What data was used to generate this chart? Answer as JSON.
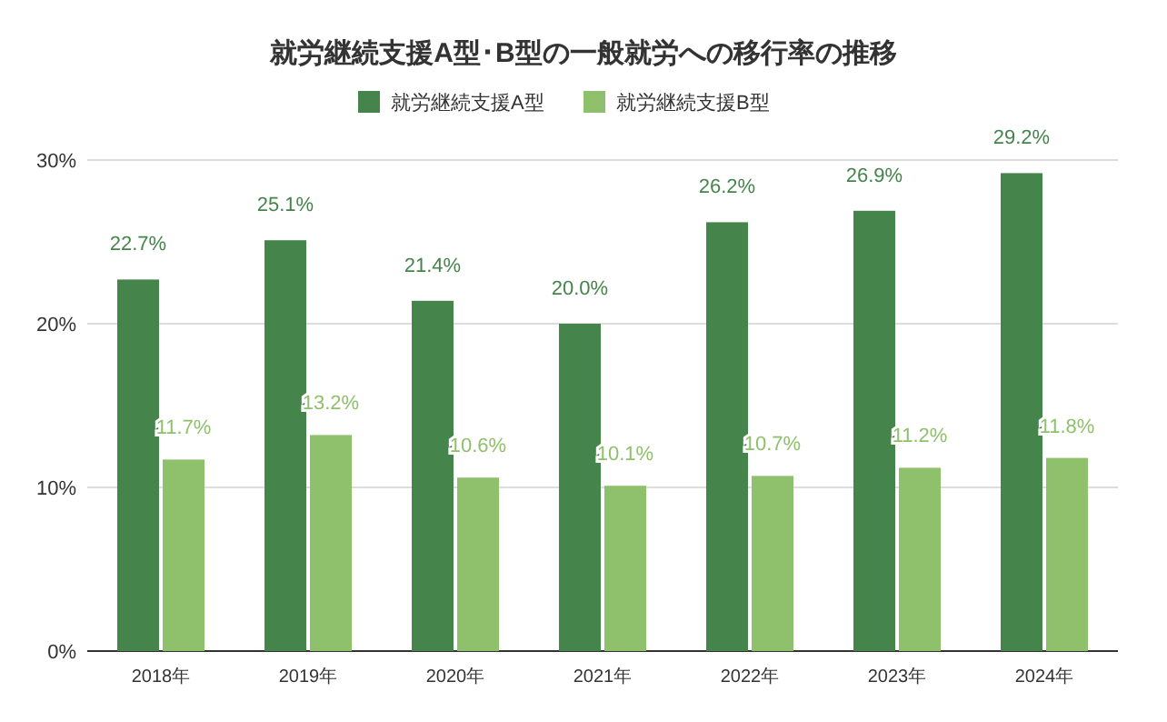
{
  "chart_data": {
    "type": "bar",
    "title": "就労継続支援A型･B型の一般就労への移行率の推移",
    "categories": [
      "2018年",
      "2019年",
      "2020年",
      "2021年",
      "2022年",
      "2023年",
      "2024年"
    ],
    "series": [
      {
        "name": "就労継続支援A型",
        "color": "#45844a",
        "values": [
          22.7,
          25.1,
          21.4,
          20.0,
          26.2,
          26.9,
          29.2
        ],
        "value_labels": [
          "22.7%",
          "25.1%",
          "21.4%",
          "20.0%",
          "26.2%",
          "26.9%",
          "29.2%"
        ]
      },
      {
        "name": "就労継続支援B型",
        "color": "#8fc06b",
        "values": [
          11.7,
          13.2,
          10.6,
          10.1,
          10.7,
          11.2,
          11.8
        ],
        "value_labels": [
          "11.7%",
          "13.2%",
          "10.6%",
          "10.1%",
          "10.7%",
          "11.2%",
          "11.8%"
        ]
      }
    ],
    "ylim": [
      0,
      30
    ],
    "yticks": [
      {
        "value": 0,
        "label": "0%"
      },
      {
        "value": 10,
        "label": "10%"
      },
      {
        "value": 20,
        "label": "20%"
      },
      {
        "value": 30,
        "label": "30%"
      }
    ],
    "grid": "y",
    "legend": "top"
  }
}
